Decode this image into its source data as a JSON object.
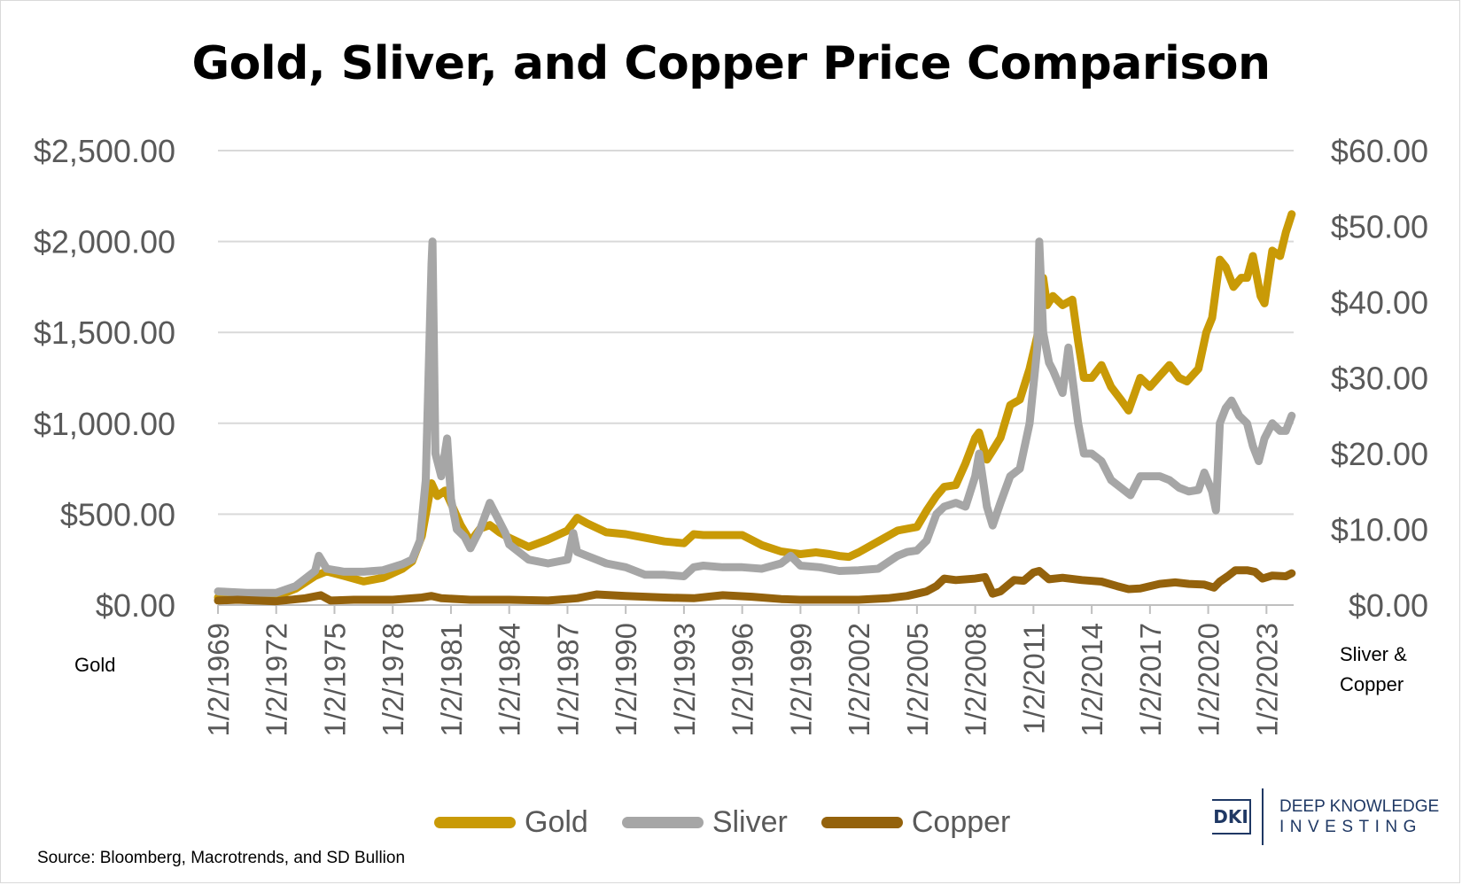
{
  "chart_data": {
    "type": "line",
    "title": "Gold, Sliver, and Copper Price Comparison",
    "ylabel_left": "Gold",
    "ylabel_right": "Sliver & Copper",
    "ylim_left": [
      0,
      2500
    ],
    "ylim_right": [
      0,
      60
    ],
    "y_ticks_left": [
      "$0.00",
      "$500.00",
      "$1,000.00",
      "$1,500.00",
      "$2,000.00",
      "$2,500.00"
    ],
    "y_ticks_right": [
      "$0.00",
      "$10.00",
      "$20.00",
      "$30.00",
      "$40.00",
      "$50.00",
      "$60.00"
    ],
    "x_ticks": [
      "1/2/1969",
      "1/2/1972",
      "1/2/1975",
      "1/2/1978",
      "1/2/1981",
      "1/2/1984",
      "1/2/1987",
      "1/2/1990",
      "1/2/1993",
      "1/2/1996",
      "1/2/1999",
      "1/2/2002",
      "1/2/2005",
      "1/2/2008",
      "1/2/2011",
      "1/2/2014",
      "1/2/2017",
      "1/2/2020",
      "1/2/2023"
    ],
    "grid": true,
    "legend_position": "bottom",
    "series": [
      {
        "name": "Gold",
        "axis": "left",
        "color": "#c99a06",
        "x": [
          1969.0,
          1970.5,
          1972.0,
          1973.0,
          1974.0,
          1974.6,
          1975.5,
          1976.5,
          1977.5,
          1978.5,
          1979.0,
          1979.5,
          1980.0,
          1980.3,
          1980.7,
          1981.0,
          1981.5,
          1982.0,
          1982.5,
          1983.0,
          1983.5,
          1984.0,
          1985.0,
          1986.0,
          1987.0,
          1987.5,
          1988.0,
          1989.0,
          1990.0,
          1991.0,
          1992.0,
          1993.0,
          1993.5,
          1994.0,
          1995.0,
          1996.0,
          1997.0,
          1998.0,
          1999.0,
          1999.8,
          2000.5,
          2001.0,
          2001.5,
          2002.0,
          2003.0,
          2004.0,
          2005.0,
          2005.5,
          2006.0,
          2006.4,
          2007.0,
          2007.5,
          2008.0,
          2008.2,
          2008.6,
          2008.9,
          2009.3,
          2009.8,
          2010.3,
          2010.8,
          2011.2,
          2011.5,
          2011.7,
          2012.0,
          2012.5,
          2013.0,
          2013.3,
          2013.6,
          2014.0,
          2014.5,
          2015.0,
          2015.5,
          2015.9,
          2016.5,
          2017.0,
          2017.5,
          2018.0,
          2018.5,
          2018.9,
          2019.5,
          2019.9,
          2020.2,
          2020.6,
          2020.9,
          2021.3,
          2021.7,
          2022.0,
          2022.3,
          2022.7,
          2022.9,
          2023.3,
          2023.7,
          2024.0,
          2024.3
        ],
        "values": [
          42,
          36,
          48,
          90,
          160,
          185,
          160,
          130,
          150,
          200,
          240,
          380,
          670,
          600,
          630,
          560,
          440,
          350,
          420,
          440,
          400,
          370,
          320,
          360,
          410,
          480,
          450,
          400,
          390,
          370,
          350,
          340,
          390,
          385,
          385,
          385,
          330,
          295,
          280,
          290,
          280,
          270,
          265,
          290,
          350,
          410,
          430,
          520,
          600,
          650,
          660,
          780,
          920,
          950,
          800,
          850,
          920,
          1100,
          1130,
          1300,
          1480,
          1800,
          1650,
          1700,
          1650,
          1680,
          1450,
          1250,
          1250,
          1320,
          1200,
          1130,
          1070,
          1250,
          1200,
          1260,
          1320,
          1250,
          1230,
          1300,
          1500,
          1580,
          1900,
          1860,
          1750,
          1800,
          1800,
          1920,
          1700,
          1660,
          1950,
          1920,
          2050,
          2150
        ]
      },
      {
        "name": "Sliver",
        "axis": "right",
        "color": "#a6a6a6",
        "x": [
          1969.0,
          1970.5,
          1972.0,
          1973.0,
          1974.0,
          1974.2,
          1974.6,
          1975.5,
          1976.5,
          1977.5,
          1978.5,
          1979.0,
          1979.4,
          1979.7,
          1980.0,
          1980.05,
          1980.2,
          1980.5,
          1980.8,
          1981.0,
          1981.3,
          1981.7,
          1982.0,
          1982.5,
          1983.0,
          1983.3,
          1983.8,
          1984.0,
          1985.0,
          1986.0,
          1987.0,
          1987.3,
          1987.5,
          1988.0,
          1989.0,
          1990.0,
          1991.0,
          1992.0,
          1993.0,
          1993.5,
          1994.0,
          1995.0,
          1996.0,
          1997.0,
          1998.0,
          1998.5,
          1999.0,
          2000.0,
          2001.0,
          2002.0,
          2003.0,
          2004.0,
          2004.5,
          2005.0,
          2005.5,
          2006.0,
          2006.4,
          2007.0,
          2007.5,
          2008.0,
          2008.2,
          2008.6,
          2008.9,
          2009.3,
          2009.8,
          2010.3,
          2010.8,
          2011.2,
          2011.3,
          2011.5,
          2011.8,
          2012.0,
          2012.5,
          2012.8,
          2013.0,
          2013.3,
          2013.6,
          2014.0,
          2014.5,
          2015.0,
          2015.5,
          2016.0,
          2016.5,
          2017.0,
          2017.5,
          2018.0,
          2018.5,
          2019.0,
          2019.5,
          2019.8,
          2020.2,
          2020.4,
          2020.6,
          2020.9,
          2021.2,
          2021.6,
          2022.0,
          2022.3,
          2022.6,
          2022.9,
          2023.3,
          2023.7,
          2024.0,
          2024.3
        ],
        "values": [
          1.8,
          1.6,
          1.6,
          2.5,
          4.5,
          6.5,
          4.8,
          4.4,
          4.4,
          4.6,
          5.4,
          6.0,
          8.5,
          16.5,
          45.0,
          48.0,
          20.0,
          17.0,
          22.0,
          14.0,
          10.0,
          9.0,
          7.5,
          10.0,
          13.5,
          12.0,
          9.5,
          8.0,
          6.0,
          5.5,
          6.0,
          9.5,
          7.0,
          6.5,
          5.5,
          5.0,
          4.0,
          4.0,
          3.8,
          5.0,
          5.2,
          5.0,
          5.0,
          4.8,
          5.5,
          6.5,
          5.2,
          5.0,
          4.5,
          4.6,
          4.8,
          6.5,
          7.0,
          7.2,
          8.5,
          12.0,
          13.0,
          13.5,
          13.0,
          17.0,
          20.0,
          13.0,
          10.5,
          13.5,
          17.0,
          18.0,
          24.0,
          34.0,
          48.0,
          36.0,
          32.0,
          31.0,
          28.0,
          34.0,
          30.0,
          24.0,
          20.0,
          20.0,
          19.0,
          16.5,
          15.5,
          14.5,
          17.0,
          17.0,
          17.0,
          16.5,
          15.5,
          15.0,
          15.2,
          17.5,
          15.0,
          12.5,
          24.0,
          26.0,
          27.0,
          25.0,
          24.0,
          21.0,
          19.0,
          22.0,
          24.0,
          23.0,
          23.0,
          25.0
        ]
      },
      {
        "name": "Copper",
        "axis": "right",
        "color": "#94620c",
        "x": [
          1969.0,
          1970.0,
          1972.0,
          1973.5,
          1974.3,
          1974.8,
          1976.0,
          1978.0,
          1979.5,
          1980.0,
          1980.5,
          1982.0,
          1984.0,
          1986.0,
          1987.5,
          1988.5,
          1990.0,
          1992.0,
          1993.5,
          1995.0,
          1996.5,
          1998.0,
          1999.0,
          2001.0,
          2002.0,
          2003.5,
          2004.5,
          2005.0,
          2005.5,
          2006.0,
          2006.4,
          2007.0,
          2008.0,
          2008.5,
          2008.9,
          2009.3,
          2010.0,
          2010.5,
          2011.0,
          2011.3,
          2011.8,
          2012.5,
          2013.5,
          2014.5,
          2015.3,
          2015.9,
          2016.5,
          2017.5,
          2018.3,
          2019.0,
          2019.8,
          2020.3,
          2020.6,
          2021.0,
          2021.4,
          2022.0,
          2022.4,
          2022.8,
          2023.3,
          2024.0,
          2024.3
        ],
        "values": [
          0.6,
          0.7,
          0.5,
          0.9,
          1.3,
          0.6,
          0.7,
          0.7,
          1.0,
          1.2,
          0.9,
          0.7,
          0.7,
          0.6,
          0.9,
          1.4,
          1.2,
          1.0,
          0.9,
          1.3,
          1.1,
          0.8,
          0.7,
          0.7,
          0.7,
          0.9,
          1.2,
          1.5,
          1.8,
          2.5,
          3.5,
          3.3,
          3.5,
          3.7,
          1.5,
          1.8,
          3.3,
          3.2,
          4.3,
          4.5,
          3.4,
          3.6,
          3.3,
          3.1,
          2.5,
          2.1,
          2.2,
          2.8,
          3.0,
          2.8,
          2.7,
          2.3,
          3.1,
          3.8,
          4.6,
          4.6,
          4.4,
          3.5,
          3.9,
          3.8,
          4.2
        ]
      }
    ]
  },
  "source": "Source: Bloomberg, Macrotrends, and SD Bullion",
  "logo": {
    "mark": "DKI",
    "line1": "DEEP KNOWLEDGE",
    "line2": "INVESTING"
  },
  "colors": {
    "gold": "#c99a06",
    "sliver": "#a6a6a6",
    "copper": "#94620c",
    "grid": "#d9d9d9",
    "tick_text": "#595959",
    "brand": "#1f3864"
  }
}
